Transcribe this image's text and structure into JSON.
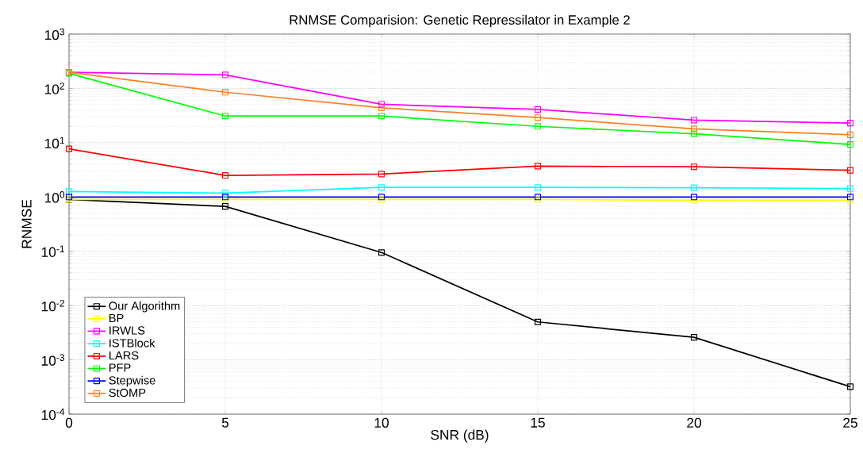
{
  "chart_data": {
    "type": "line",
    "title": "RNMSE Comparision: Genetic Repressilator in Example 2",
    "xlabel": "SNR (dB)",
    "ylabel": "RNMSE",
    "x": [
      0,
      5,
      10,
      15,
      20,
      25
    ],
    "series": [
      {
        "name": "Our Algorithm",
        "color": "#000000",
        "values": [
          0.9,
          0.67,
          0.095,
          0.005,
          0.0026,
          0.00032
        ]
      },
      {
        "name": "BP",
        "color": "#ffff00",
        "values": [
          0.9,
          0.9,
          0.9,
          0.9,
          0.87,
          0.87
        ]
      },
      {
        "name": "IRWLS",
        "color": "#ff00ff",
        "values": [
          198,
          178,
          51,
          41,
          26,
          23
        ]
      },
      {
        "name": "ISTBlock",
        "color": "#00ffff",
        "values": [
          1.26,
          1.18,
          1.5,
          1.5,
          1.48,
          1.43
        ]
      },
      {
        "name": "LARS",
        "color": "#ff0000",
        "values": [
          7.7,
          2.5,
          2.65,
          3.7,
          3.6,
          3.1
        ]
      },
      {
        "name": "PFP",
        "color": "#00ff00",
        "values": [
          190,
          31,
          31,
          20,
          14.6,
          9.3
        ]
      },
      {
        "name": "Stepwise",
        "color": "#0000ff",
        "values": [
          1.0,
          1.0,
          1.0,
          1.0,
          1.0,
          1.0
        ]
      },
      {
        "name": "StOMP",
        "color": "#ff7f27",
        "values": [
          198,
          85,
          44,
          29,
          18,
          14
        ]
      }
    ],
    "xlim": [
      0,
      25
    ],
    "xticks": [
      0,
      5,
      10,
      15,
      20,
      25
    ],
    "ylim": [
      0.0001,
      1000
    ],
    "yticks": [
      {
        "value": 0.0001,
        "label": "10$^{-4}$"
      },
      {
        "value": 0.001,
        "label": "10$^{-3}$"
      },
      {
        "value": 0.01,
        "label": "10$^{-2}$"
      },
      {
        "value": 0.1,
        "label": "10$^{-1}$"
      },
      {
        "value": 1,
        "label": "10$^{0}$"
      },
      {
        "value": 10,
        "label": "10$^{1}$"
      },
      {
        "value": 100,
        "label": "10$^{2}$"
      },
      {
        "value": 1000,
        "label": "10$^{3}$"
      }
    ],
    "log": "y",
    "grid": true,
    "legend": "bottom left",
    "marker": "square",
    "line_style": "solid"
  }
}
